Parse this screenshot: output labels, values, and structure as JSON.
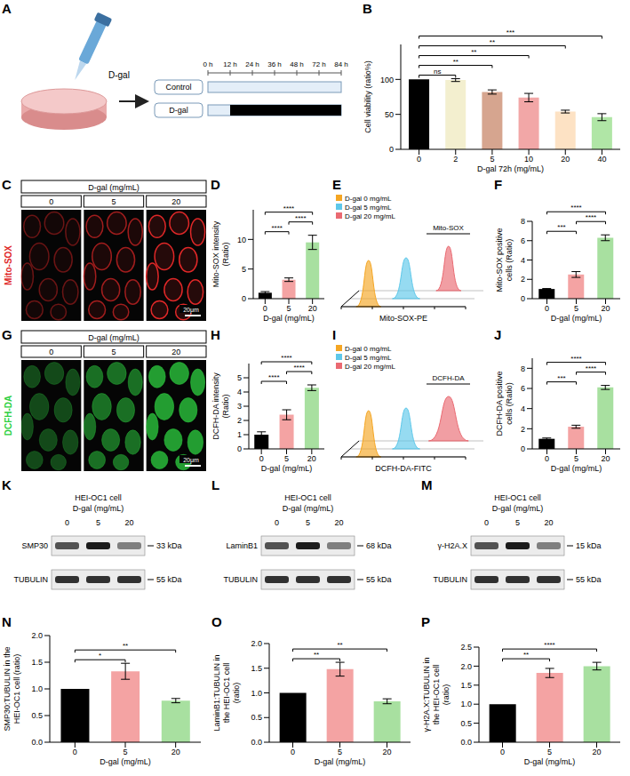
{
  "chart_data": [
    {
      "panel": "B",
      "type": "bar",
      "y_label": "Cell viability (ratio%)",
      "x_label": "D-gal 72h (mg/mL)",
      "categories": [
        "0",
        "2",
        "5",
        "10",
        "20",
        "40"
      ],
      "values": [
        100,
        99,
        82,
        74,
        54,
        46
      ],
      "errors": [
        0,
        2,
        3,
        6,
        2,
        5
      ],
      "colors": [
        "#000000",
        "#f3efcf",
        "#d6a58f",
        "#f2a7a7",
        "#fde2c4",
        "#b0e6a6"
      ],
      "ylim": [
        0,
        150
      ],
      "yticks": [
        0,
        50,
        100
      ],
      "annotations": [
        {
          "from": "0",
          "to": "2",
          "label": "ns"
        },
        {
          "from": "0",
          "to": "5",
          "label": "**"
        },
        {
          "from": "0",
          "to": "10",
          "label": "**"
        },
        {
          "from": "0",
          "to": "20",
          "label": "**"
        },
        {
          "from": "0",
          "to": "40",
          "label": "***"
        }
      ]
    },
    {
      "panel": "D",
      "type": "bar",
      "y_label": "Mito-SOX intensity (Ratio)",
      "x_label": "D-gal (mg/mL)",
      "categories": [
        "0",
        "5",
        "20"
      ],
      "values": [
        1,
        3.2,
        9.5
      ],
      "errors": [
        0.2,
        0.3,
        1.2
      ],
      "colors": [
        "#000000",
        "#f4a3a3",
        "#a8e0a0"
      ],
      "ylim": [
        0,
        15
      ],
      "yticks": [
        0,
        5,
        10
      ],
      "annotations": [
        {
          "from": "0",
          "to": "5",
          "label": "****"
        },
        {
          "from": "5",
          "to": "20",
          "label": "****"
        },
        {
          "from": "0",
          "to": "20",
          "label": "****"
        }
      ]
    },
    {
      "panel": "F",
      "type": "bar",
      "y_label": "Mito-SOX positive cells (Ratio)",
      "x_label": "D-gal (mg/mL)",
      "categories": [
        "0",
        "5",
        "20"
      ],
      "values": [
        1,
        2.5,
        6.3
      ],
      "errors": [
        0.05,
        0.3,
        0.3
      ],
      "colors": [
        "#000000",
        "#f4a3a3",
        "#a8e0a0"
      ],
      "ylim": [
        0,
        8
      ],
      "yticks": [
        0,
        2,
        4,
        6,
        8
      ],
      "annotations": [
        {
          "from": "0",
          "to": "5",
          "label": "***"
        },
        {
          "from": "5",
          "to": "20",
          "label": "****"
        },
        {
          "from": "0",
          "to": "20",
          "label": "****"
        }
      ]
    },
    {
      "panel": "H",
      "type": "bar",
      "y_label": "DCFH-DA intensity (Ratio)",
      "x_label": "D-gal (mg/mL)",
      "categories": [
        "0",
        "5",
        "20"
      ],
      "values": [
        1,
        2.4,
        4.3
      ],
      "errors": [
        0.2,
        0.35,
        0.2
      ],
      "colors": [
        "#000000",
        "#f4a3a3",
        "#a8e0a0"
      ],
      "ylim": [
        0,
        6
      ],
      "yticks": [
        0,
        1,
        2,
        3,
        4,
        5
      ],
      "annotations": [
        {
          "from": "0",
          "to": "5",
          "label": "****"
        },
        {
          "from": "5",
          "to": "20",
          "label": "****"
        },
        {
          "from": "0",
          "to": "20",
          "label": "****"
        }
      ]
    },
    {
      "panel": "J",
      "type": "bar",
      "y_label": "DCFH-DA positive cells (Ratio)",
      "x_label": "D-gal (mg/mL)",
      "categories": [
        "0",
        "5",
        "20"
      ],
      "values": [
        1,
        2.2,
        6.1
      ],
      "errors": [
        0.08,
        0.15,
        0.2
      ],
      "colors": [
        "#000000",
        "#f4a3a3",
        "#a8e0a0"
      ],
      "ylim": [
        0,
        9
      ],
      "yticks": [
        0,
        2,
        4,
        6,
        8
      ],
      "annotations": [
        {
          "from": "0",
          "to": "5",
          "label": "***"
        },
        {
          "from": "5",
          "to": "20",
          "label": "****"
        },
        {
          "from": "0",
          "to": "20",
          "label": "****"
        }
      ]
    },
    {
      "panel": "N",
      "type": "bar",
      "y_label": "SMP30:TUBULIN in the HEI-OC1 cell (ratio)",
      "x_label": "D-gal (mg/mL)",
      "categories": [
        "0",
        "5",
        "20"
      ],
      "values": [
        1,
        1.33,
        0.78
      ],
      "errors": [
        0,
        0.15,
        0.04
      ],
      "colors": [
        "#000000",
        "#f4a3a3",
        "#a8e0a0"
      ],
      "ylim": [
        0,
        2
      ],
      "yticks": [
        {
          "value": 0,
          "label": "0.0"
        },
        0.5,
        {
          "value": 1,
          "label": "1.0"
        },
        1.5,
        {
          "value": 2,
          "label": "2.0"
        }
      ],
      "annotations": [
        {
          "from": "0",
          "to": "5",
          "label": "*"
        },
        {
          "from": "0",
          "to": "20",
          "label": "**"
        }
      ]
    },
    {
      "panel": "O",
      "type": "bar",
      "y_label": "LaminB1:TUBULIN in the HEI-OC1 cell (ratio)",
      "x_label": "D-gal (mg/mL)",
      "categories": [
        "0",
        "5",
        "20"
      ],
      "values": [
        1,
        1.48,
        0.83
      ],
      "errors": [
        0,
        0.14,
        0.05
      ],
      "colors": [
        "#000000",
        "#f4a3a3",
        "#a8e0a0"
      ],
      "ylim": [
        0,
        2
      ],
      "yticks": [
        {
          "value": 0,
          "label": "0.0"
        },
        0.5,
        {
          "value": 1,
          "label": "1.0"
        },
        1.5,
        {
          "value": 2,
          "label": "2.0"
        }
      ],
      "annotations": [
        {
          "from": "0",
          "to": "5",
          "label": "**"
        },
        {
          "from": "0",
          "to": "20",
          "label": "**"
        }
      ]
    },
    {
      "panel": "P",
      "type": "bar",
      "y_label": "γ-H2A.X:TUBULIN in the HEI-OC1 cell (ratio)",
      "x_label": "D-gal (mg/mL)",
      "categories": [
        "0",
        "5",
        "20"
      ],
      "values": [
        1,
        1.82,
        2.0
      ],
      "errors": [
        0,
        0.12,
        0.1
      ],
      "colors": [
        "#000000",
        "#f4a3a3",
        "#a8e0a0"
      ],
      "ylim": [
        0,
        2.5
      ],
      "yticks": [
        {
          "value": 0,
          "label": "0.0"
        },
        0.5,
        {
          "value": 1,
          "label": "1.0"
        },
        1.5,
        {
          "value": 2,
          "label": "2.0"
        },
        2.5
      ],
      "annotations": [
        {
          "from": "0",
          "to": "5",
          "label": "**"
        },
        {
          "from": "0",
          "to": "20",
          "label": "****"
        }
      ]
    }
  ],
  "panels": {
    "A": {
      "panel": "A",
      "reagent": "D-gal",
      "timeline": [
        "0 h",
        "12 h",
        "24 h",
        "36 h",
        "48 h",
        "72 h",
        "84 h"
      ],
      "groups": [
        "Control",
        "D-gal"
      ]
    },
    "C": {
      "panel": "C",
      "stain": "Mito-SOX",
      "header": "D-gal (mg/mL)",
      "columns": [
        "0",
        "5",
        "20"
      ],
      "scale_bar": "20μm",
      "color": "#e02828"
    },
    "G": {
      "panel": "G",
      "stain": "DCFH-DA",
      "header": "D-gal (mg/mL)",
      "columns": [
        "0",
        "5",
        "20"
      ],
      "scale_bar": "20μm",
      "color": "#2ed040"
    },
    "E": {
      "panel": "E",
      "x_label": "Mito-SOX-PE",
      "gate": "Mito-SOX",
      "series": [
        {
          "name": "D-gal 0 mg/mL",
          "color": "#f5a623"
        },
        {
          "name": "D-gal 5 mg/mL",
          "color": "#5ec8ea"
        },
        {
          "name": "D-gal 20 mg/mL",
          "color": "#ea6a72"
        }
      ]
    },
    "I": {
      "panel": "I",
      "x_label": "DCFH-DA-FITC",
      "gate": "DCFH-DA",
      "series": [
        {
          "name": "D-gal 0 mg/mL",
          "color": "#f5a623"
        },
        {
          "name": "D-gal 5 mg/mL",
          "color": "#5ec8ea"
        },
        {
          "name": "D-gal 20 mg/mL",
          "color": "#ea6a72"
        }
      ]
    },
    "K": {
      "panel": "K",
      "title": "HEI-OC1 cell",
      "header": "D-gal (mg/mL)",
      "lanes": [
        "0",
        "5",
        "20"
      ],
      "bands": [
        {
          "name": "SMP30",
          "size": "33 kDa"
        },
        {
          "name": "TUBULIN",
          "size": "55 kDa"
        }
      ]
    },
    "L": {
      "panel": "L",
      "title": "HEI-OC1 cell",
      "header": "D-gal (mg/mL)",
      "lanes": [
        "0",
        "5",
        "20"
      ],
      "bands": [
        {
          "name": "LaminB1",
          "size": "68 kDa"
        },
        {
          "name": "TUBULIN",
          "size": "55 kDa"
        }
      ]
    },
    "M": {
      "panel": "M",
      "title": "HEI-OC1 cell",
      "header": "D-gal (mg/mL)",
      "lanes": [
        "0",
        "5",
        "20"
      ],
      "bands": [
        {
          "name": "γ-H2A.X",
          "size": "15 kDa"
        },
        {
          "name": "TUBULIN",
          "size": "55 kDa"
        }
      ]
    }
  }
}
